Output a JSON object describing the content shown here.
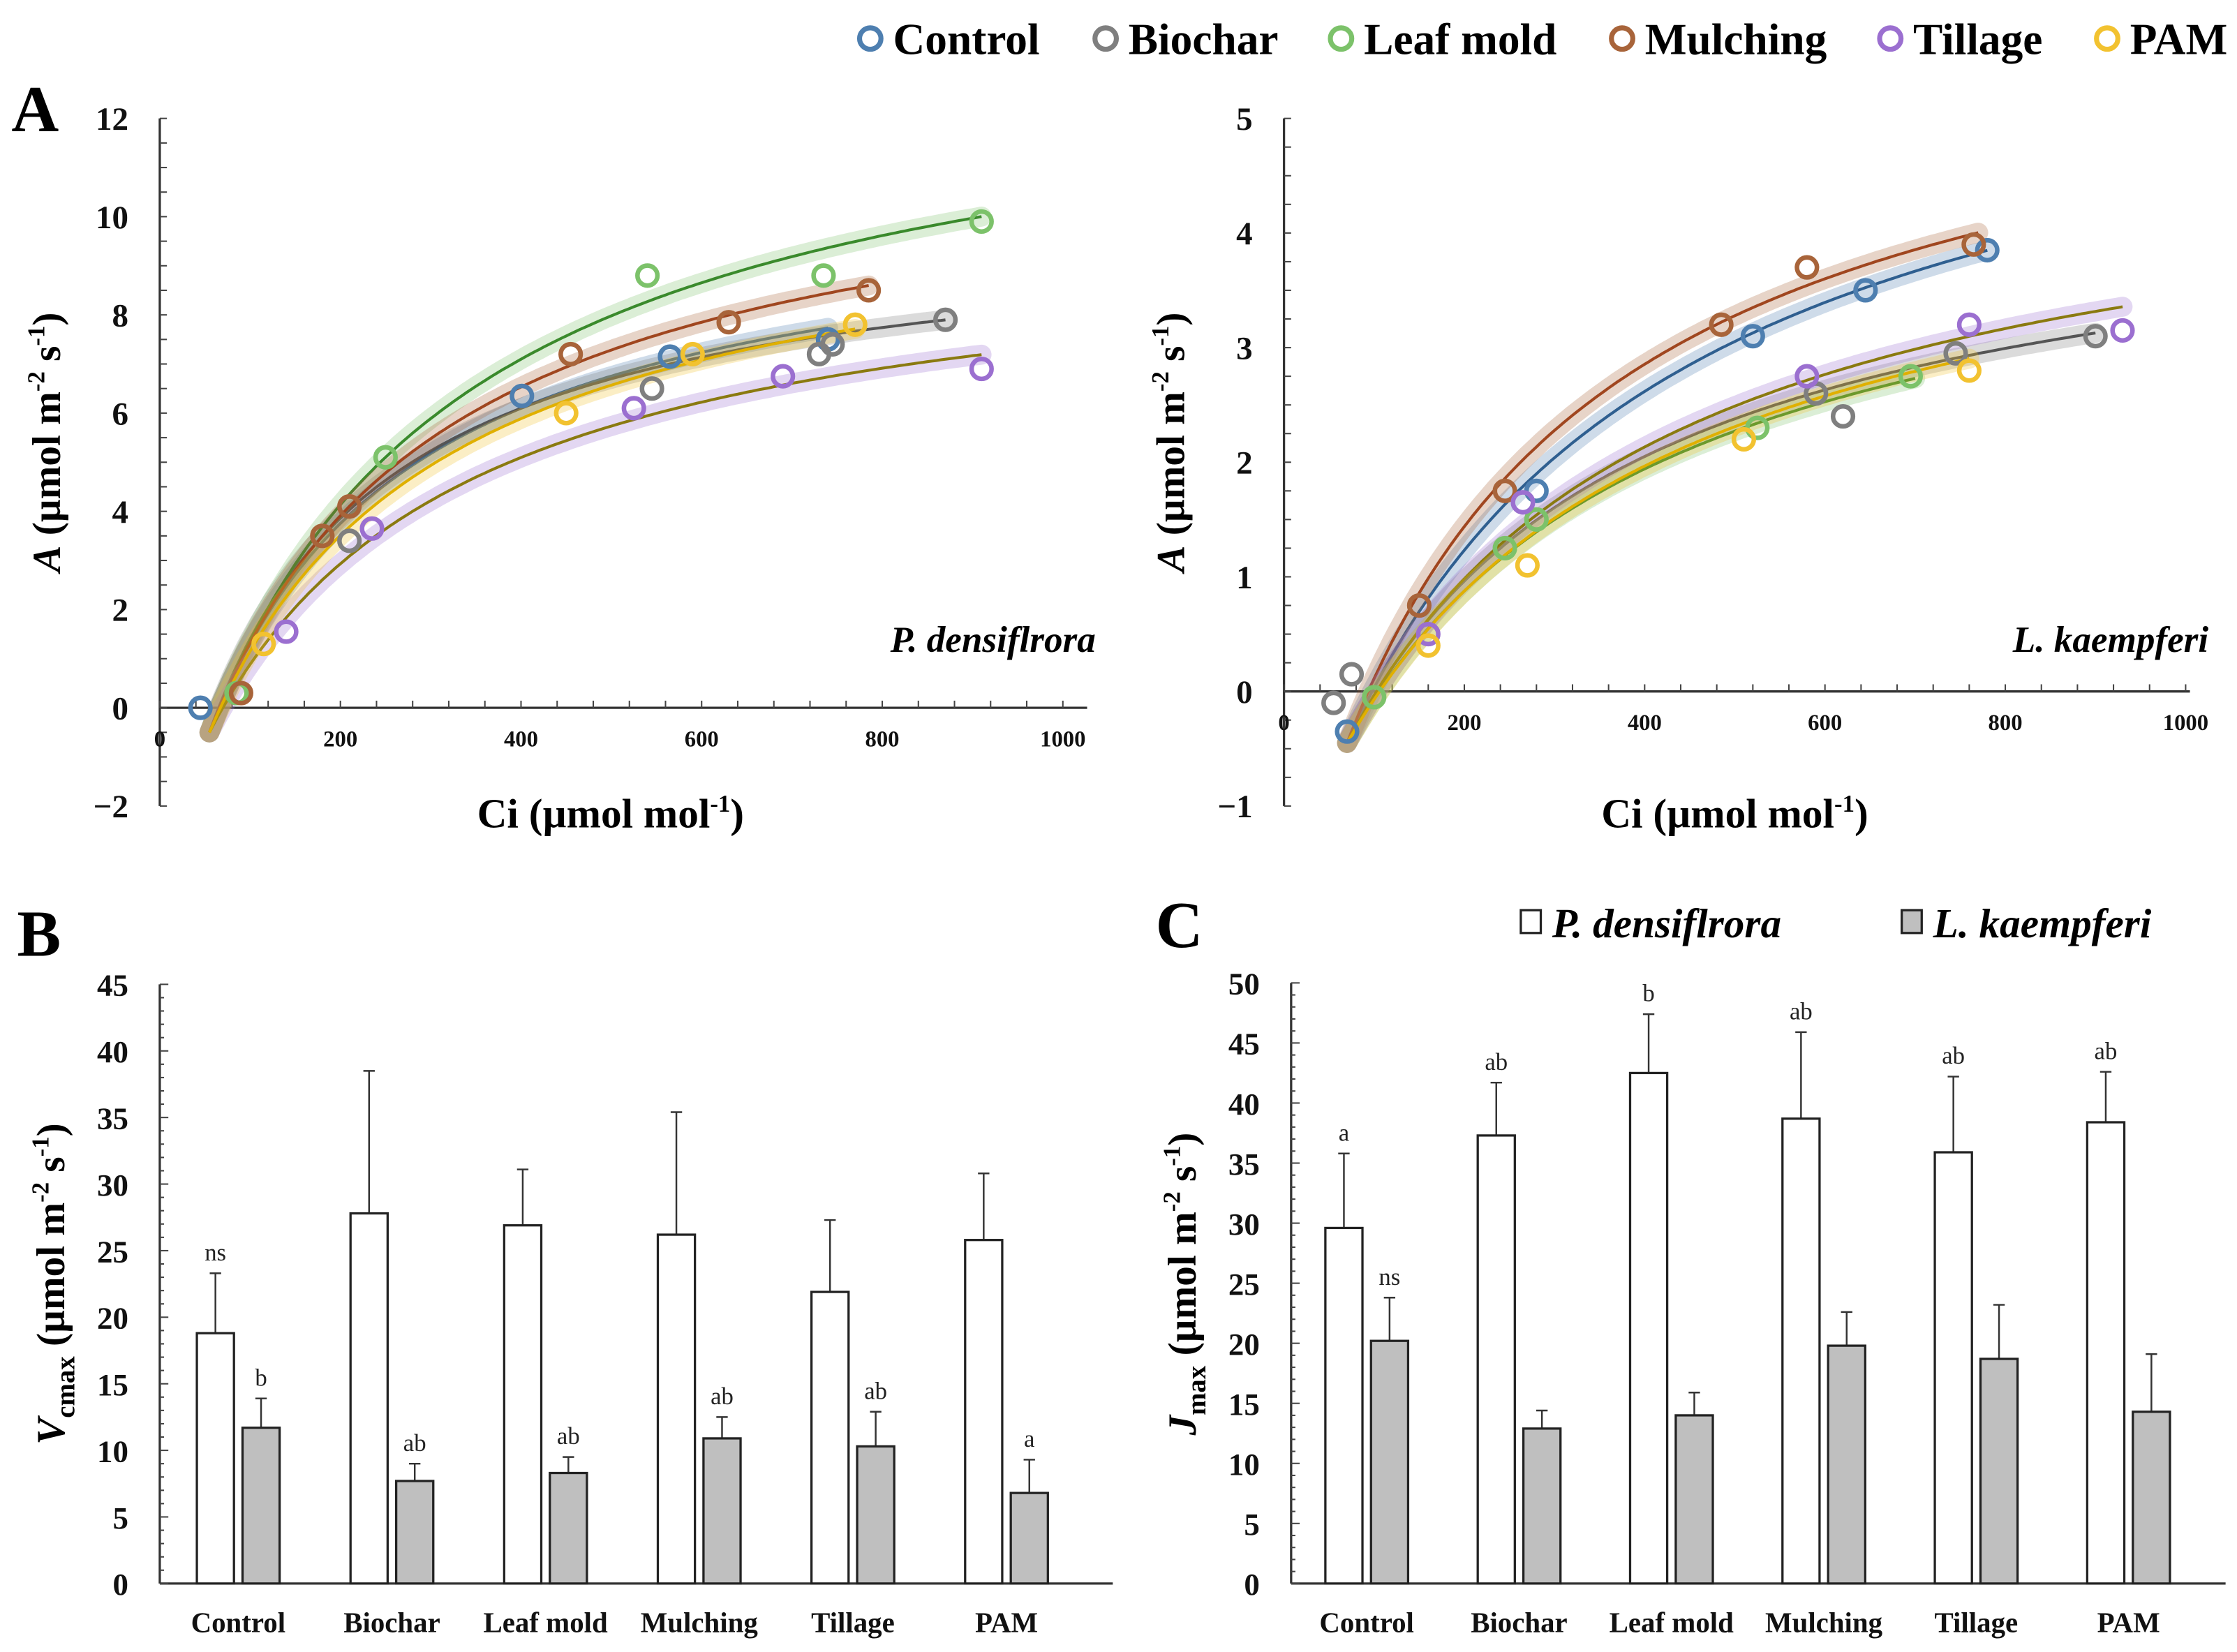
{
  "legend": {
    "series": [
      {
        "key": "control",
        "label": "Control",
        "color": "#4e7fb0",
        "line": "#2f5f90"
      },
      {
        "key": "biochar",
        "label": "Biochar",
        "color": "#7f7f7f",
        "line": "#555555"
      },
      {
        "key": "leafmold",
        "label": "Leaf mold",
        "color": "#7cc26a",
        "line": "#3a8a2c"
      },
      {
        "key": "mulching",
        "label": "Mulching",
        "color": "#a8643a",
        "line": "#a0461f"
      },
      {
        "key": "tillage",
        "label": "Tillage",
        "color": "#9b6fd0",
        "line": "#8a7a10"
      },
      {
        "key": "pam",
        "label": "PAM",
        "color": "#f2c230",
        "line": "#e0b000"
      }
    ]
  },
  "panels": {
    "a": "A",
    "b": "B",
    "c": "C"
  },
  "chart_data": [
    {
      "type": "scatter",
      "panel": "A",
      "title": "P. densiflrora",
      "xlabel": "Ci (µmol mol-1)",
      "xlabel_parts": [
        "Ci (µmol mol",
        "-1",
        ")"
      ],
      "ylabel_parts": [
        "A",
        " (µmol m",
        "-2",
        " s",
        "-1",
        ")"
      ],
      "xlim": [
        0,
        1000
      ],
      "ylim": [
        -2,
        12
      ],
      "xticks": [
        0,
        200,
        400,
        600,
        800,
        1000
      ],
      "yticks": [
        -2,
        0,
        2,
        4,
        6,
        8,
        10,
        12
      ],
      "ytick_labels": [
        "−2",
        "0",
        "2",
        "4",
        "6",
        "8",
        "10",
        "12"
      ],
      "fit": {
        "x0": 55,
        "offset": 0.5,
        "series": {
          "control": {
            "Amax": 11.0,
            "K": 230,
            "xend": 740
          },
          "biochar": {
            "Amax": 10.5,
            "K": 204,
            "xend": 870
          },
          "leafmold": {
            "Amax": 14.16,
            "K": 298,
            "xend": 910
          },
          "mulching": {
            "Amax": 12.35,
            "K": 261,
            "xend": 785
          },
          "tillage": {
            "Amax": 10.3,
            "K": 290,
            "xend": 910
          },
          "pam": {
            "Amax": 11.2,
            "K": 260,
            "xend": 770
          }
        }
      },
      "points": {
        "control": [
          [
            45,
            0
          ],
          [
            401,
            6.35
          ],
          [
            565,
            7.15
          ],
          [
            740,
            7.5
          ]
        ],
        "biochar": [
          [
            870,
            7.9
          ],
          [
            730,
            7.2
          ],
          [
            745,
            7.4
          ],
          [
            545,
            6.5
          ],
          [
            210,
            3.4
          ]
        ],
        "leafmold": [
          [
            540,
            8.8
          ],
          [
            735,
            8.8
          ],
          [
            910,
            9.9
          ],
          [
            250,
            5.1
          ],
          [
            85,
            0.3
          ]
        ],
        "mulching": [
          [
            785,
            8.5
          ],
          [
            630,
            7.85
          ],
          [
            455,
            7.2
          ],
          [
            210,
            4.1
          ],
          [
            180,
            3.5
          ],
          [
            90,
            0.3
          ]
        ],
        "tillage": [
          [
            910,
            6.9
          ],
          [
            690,
            6.75
          ],
          [
            525,
            6.1
          ],
          [
            235,
            3.65
          ],
          [
            140,
            1.55
          ]
        ],
        "pam": [
          [
            770,
            7.8
          ],
          [
            590,
            7.2
          ],
          [
            450,
            6.0
          ],
          [
            115,
            1.3
          ]
        ]
      }
    },
    {
      "type": "scatter",
      "panel": "A",
      "title": "L. kaempferi",
      "xlabel": "Ci (µmol mol-1)",
      "xlabel_parts": [
        "Ci (µmol mol",
        "-1",
        ")"
      ],
      "ylabel_parts": [
        "A",
        " (µmol m",
        "-2",
        " s",
        "-1",
        ")"
      ],
      "xlim": [
        0,
        1000
      ],
      "ylim": [
        -1,
        5
      ],
      "xticks": [
        0,
        200,
        400,
        600,
        800,
        1000
      ],
      "yticks": [
        -1,
        0,
        1,
        2,
        3,
        4,
        5
      ],
      "ytick_labels": [
        "−1",
        "0",
        "1",
        "2",
        "3",
        "4",
        "5"
      ],
      "fit": {
        "x0": 70,
        "offset": 0.45,
        "series": {
          "control": {
            "Amax": 6.6,
            "K": 380,
            "xend": 780
          },
          "biochar": {
            "Amax": 5.0,
            "K": 330,
            "xend": 900
          },
          "leafmold": {
            "Amax": 5.0,
            "K": 360,
            "xend": 700
          },
          "mulching": {
            "Amax": 6.45,
            "K": 314,
            "xend": 770
          },
          "tillage": {
            "Amax": 5.4,
            "K": 360,
            "xend": 930
          },
          "pam": {
            "Amax": 5.2,
            "K": 380,
            "xend": 760
          }
        }
      },
      "points": {
        "control": [
          [
            780,
            3.85
          ],
          [
            645,
            3.5
          ],
          [
            520,
            3.1
          ],
          [
            280,
            1.75
          ],
          [
            70,
            -0.35
          ]
        ],
        "biochar": [
          [
            900,
            3.1
          ],
          [
            745,
            2.95
          ],
          [
            620,
            2.4
          ],
          [
            590,
            2.6
          ],
          [
            55,
            -0.1
          ],
          [
            75,
            0.15
          ]
        ],
        "leafmold": [
          [
            695,
            2.75
          ],
          [
            525,
            2.3
          ],
          [
            245,
            1.25
          ],
          [
            280,
            1.5
          ],
          [
            100,
            -0.05
          ]
        ],
        "mulching": [
          [
            765,
            3.9
          ],
          [
            580,
            3.7
          ],
          [
            485,
            3.2
          ],
          [
            245,
            1.75
          ],
          [
            150,
            0.75
          ]
        ],
        "tillage": [
          [
            930,
            3.15
          ],
          [
            760,
            3.2
          ],
          [
            580,
            2.75
          ],
          [
            160,
            0.5
          ],
          [
            265,
            1.65
          ]
        ],
        "pam": [
          [
            760,
            2.8
          ],
          [
            510,
            2.2
          ],
          [
            270,
            1.1
          ],
          [
            160,
            0.4
          ]
        ]
      }
    },
    {
      "type": "bar",
      "panel": "B",
      "categories": [
        "Control",
        "Biochar",
        "Leaf mold",
        "Mulching",
        "Tillage",
        "PAM"
      ],
      "ylabel_parts": [
        "V",
        "cmax",
        " (µmol m",
        "-2",
        " s",
        "-1",
        ")"
      ],
      "ylim": [
        0,
        45
      ],
      "yticks": [
        0,
        5,
        10,
        15,
        20,
        25,
        30,
        35,
        40,
        45
      ],
      "series": [
        {
          "name": "P. densiflrora",
          "values": [
            18.8,
            27.8,
            26.9,
            26.2,
            21.9,
            25.8
          ],
          "err_top": [
            23.3,
            38.5,
            31.1,
            35.4,
            27.3,
            30.8
          ],
          "letters": [
            "ns",
            "",
            "",
            "",
            "",
            ""
          ]
        },
        {
          "name": "L. kaempferi",
          "values": [
            11.7,
            7.7,
            8.3,
            10.9,
            10.3,
            6.8
          ],
          "err_top": [
            13.9,
            9.0,
            9.5,
            12.5,
            12.9,
            9.3
          ],
          "letters": [
            "b",
            "ab",
            "ab",
            "ab",
            "ab",
            "a"
          ]
        }
      ]
    },
    {
      "type": "bar",
      "panel": "C",
      "categories": [
        "Control",
        "Biochar",
        "Leaf mold",
        "Mulching",
        "Tillage",
        "PAM"
      ],
      "ylabel_parts": [
        "J",
        "max",
        " (µmol m",
        "-2",
        " s",
        "-1",
        ")"
      ],
      "ylim": [
        0,
        50
      ],
      "yticks": [
        0,
        5,
        10,
        15,
        20,
        25,
        30,
        35,
        40,
        45,
        50
      ],
      "legend": [
        "P. densiflrora",
        "L. kaempferi"
      ],
      "series": [
        {
          "name": "P. densiflrora",
          "values": [
            29.6,
            37.3,
            42.5,
            38.7,
            35.9,
            38.4
          ],
          "err_top": [
            35.8,
            41.7,
            47.4,
            45.9,
            42.2,
            42.6
          ],
          "letters": [
            "a",
            "ab",
            "b",
            "ab",
            "ab",
            "ab"
          ]
        },
        {
          "name": "L. kaempferi",
          "values": [
            20.2,
            12.9,
            14.0,
            19.8,
            18.7,
            14.3
          ],
          "err_top": [
            23.8,
            14.4,
            15.9,
            22.6,
            23.2,
            19.1
          ],
          "letters": [
            "ns",
            "",
            "",
            "",
            "",
            ""
          ]
        }
      ]
    }
  ]
}
